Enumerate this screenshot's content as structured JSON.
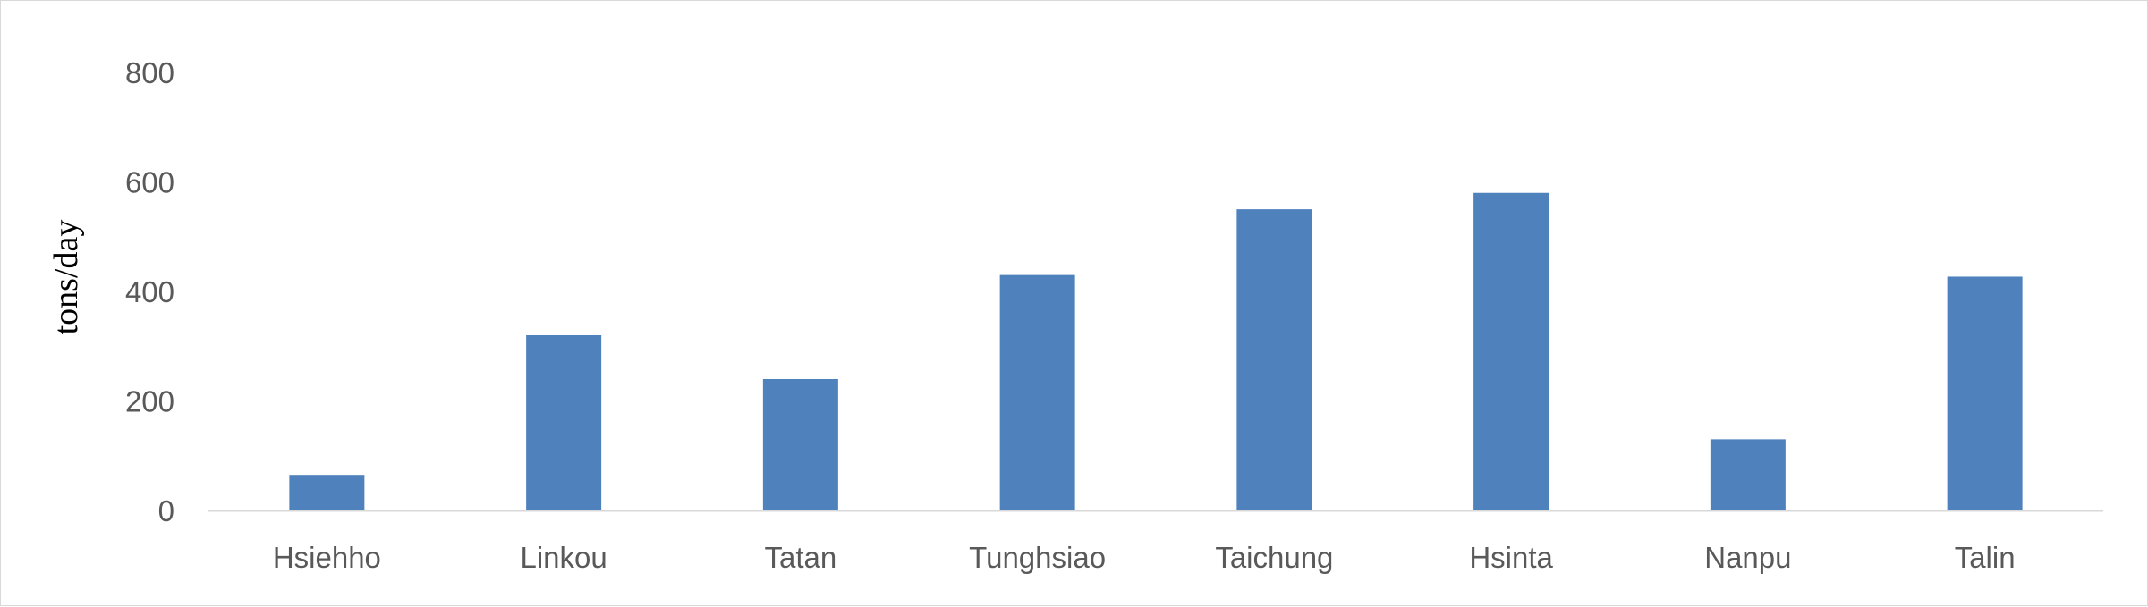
{
  "chart_data": {
    "type": "bar",
    "title": "",
    "xlabel": "",
    "ylabel": "tons/day",
    "categories": [
      "Hsiehho",
      "Linkou",
      "Tatan",
      "Tunghsiao",
      "Taichung",
      "Hsinta",
      "Nanpu",
      "Talin"
    ],
    "values": [
      65,
      320,
      240,
      430,
      550,
      580,
      130,
      427
    ],
    "ylim": [
      0,
      800
    ],
    "yticks": [
      "0",
      "200",
      "400",
      "600",
      "800"
    ],
    "grid": false,
    "legend": "none",
    "bar_color": "#4f81bd",
    "axis_color": "#d9d9d9",
    "tick_color": "#595959"
  }
}
